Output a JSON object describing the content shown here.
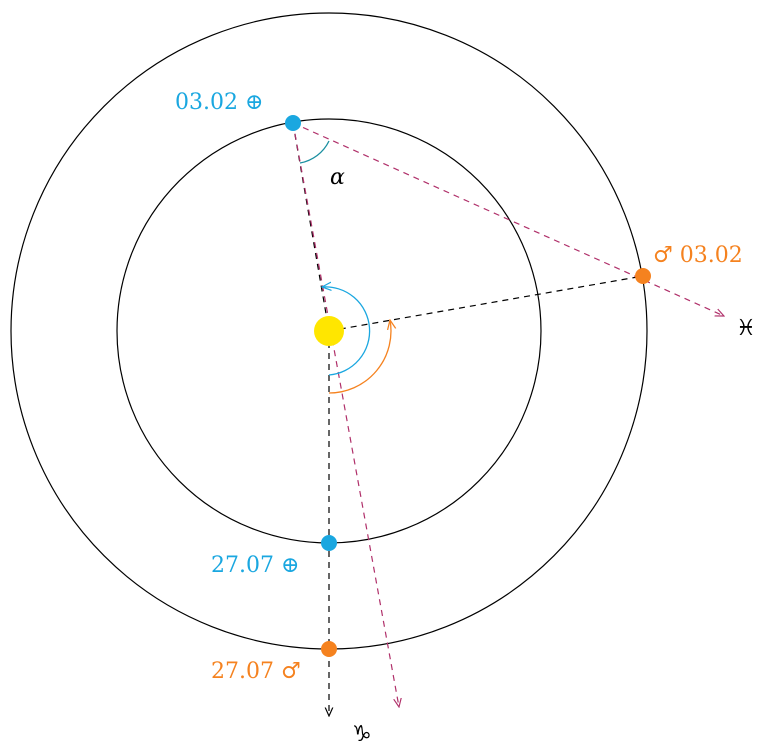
{
  "colors": {
    "earth": "#1aa7e0",
    "mars": "#f5821f",
    "sun": "#ffe600",
    "sightline": "#b0306a",
    "orbit": "#000000",
    "guide": "#000000"
  },
  "labels": {
    "earth_feb": "03.02 ⊕",
    "mars_feb": "♂ 03.02",
    "earth_jul": "27.07 ⊕",
    "mars_jul": "27.07 ♂",
    "angle": "α",
    "pisces": "♓",
    "capricorn": "♑"
  },
  "icons": {
    "pisces": "pisces-zodiac-icon",
    "capricorn": "capricorn-zodiac-icon",
    "earth": "earth-symbol-icon",
    "mars": "mars-symbol-icon"
  }
}
